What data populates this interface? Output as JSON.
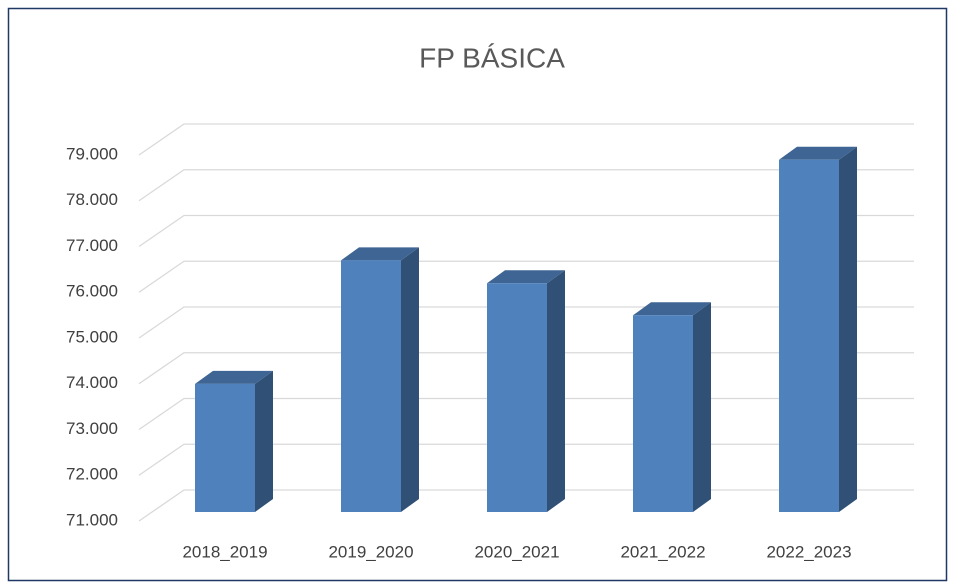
{
  "chart_data": {
    "type": "bar3d",
    "title": "FP BÁSICA",
    "categories": [
      "2018_2019",
      "2019_2020",
      "2020_2021",
      "2021_2022",
      "2022_2023"
    ],
    "values": [
      73800,
      76500,
      76000,
      75300,
      78700
    ],
    "color": "#4f81bd",
    "ylim": [
      71000,
      79000
    ],
    "yticks": [
      {
        "value": 71000,
        "label": "71.000"
      },
      {
        "value": 72000,
        "label": "72.000"
      },
      {
        "value": 73000,
        "label": "73.000"
      },
      {
        "value": 74000,
        "label": "74.000"
      },
      {
        "value": 75000,
        "label": "75.000"
      },
      {
        "value": 76000,
        "label": "76.000"
      },
      {
        "value": 77000,
        "label": "77.000"
      },
      {
        "value": 78000,
        "label": "78.000"
      },
      {
        "value": 79000,
        "label": "79.000"
      }
    ],
    "grid": true
  }
}
